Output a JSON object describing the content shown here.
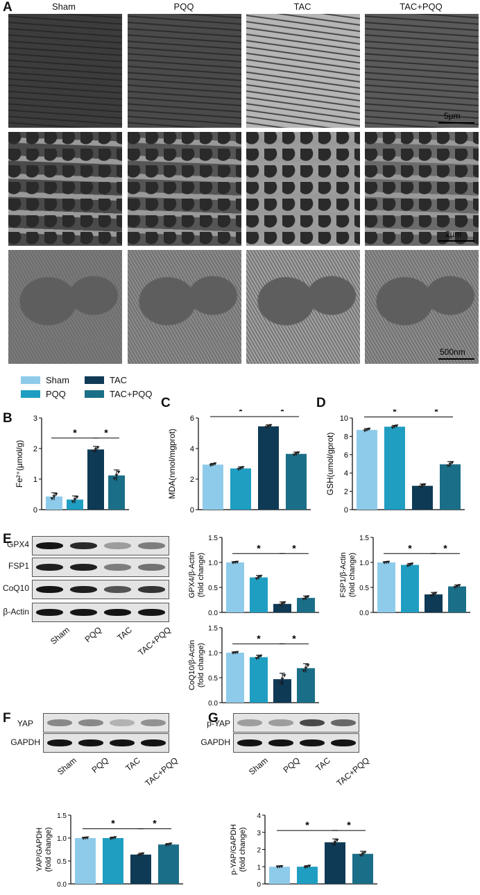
{
  "figure": {
    "panels": {
      "A": "A",
      "B": "B",
      "C": "C",
      "D": "D",
      "E": "E",
      "F": "F",
      "G": "G"
    },
    "em": {
      "columns": [
        "Sham",
        "PQQ",
        "TAC",
        "TAC+PQQ"
      ],
      "scalebars": [
        "5μm",
        "2μm",
        "500nm"
      ]
    },
    "legend": [
      {
        "label": "Sham",
        "color": "#8ECBEA"
      },
      {
        "label": "TAC",
        "color": "#0E3A55"
      },
      {
        "label": "PQQ",
        "color": "#1F9EC2"
      },
      {
        "label": "TAC+PQQ",
        "color": "#1B6E87"
      }
    ],
    "significance_mark": "*",
    "blots_E": {
      "rows": [
        "GPX4",
        "FSP1",
        "CoQ10",
        "β-Actin"
      ],
      "lanes": [
        "Sham",
        "PQQ",
        "TAC",
        "TAC+PQQ"
      ]
    },
    "blots_F": {
      "rows": [
        "YAP",
        "GAPDH"
      ],
      "lanes": [
        "Sham",
        "PQQ",
        "TAC",
        "TAC+PQQ"
      ]
    },
    "blots_G": {
      "rows": [
        "p-YAP",
        "GAPDH"
      ],
      "lanes": [
        "Sham",
        "PQQ",
        "TAC",
        "TAC+PQQ"
      ]
    }
  },
  "chart_data": [
    {
      "id": "B",
      "type": "bar",
      "categories": [
        "Sham",
        "PQQ",
        "TAC",
        "TAC+PQQ"
      ],
      "values": [
        0.43,
        0.33,
        1.97,
        1.12
      ],
      "errors": [
        0.12,
        0.12,
        0.1,
        0.18
      ],
      "ylabel": "Fe²⁺(μmol/g)",
      "ylim": [
        0,
        3
      ],
      "yticks": [
        0,
        1,
        2,
        3
      ]
    },
    {
      "id": "C",
      "type": "bar",
      "categories": [
        "Sham",
        "PQQ",
        "TAC",
        "TAC+PQQ"
      ],
      "values": [
        2.95,
        2.7,
        5.45,
        3.65
      ],
      "errors": [
        0.08,
        0.1,
        0.1,
        0.12
      ],
      "ylabel": "MDA(nmol/mgprot)",
      "ylim": [
        0,
        6
      ],
      "yticks": [
        0,
        2,
        4,
        6
      ]
    },
    {
      "id": "D",
      "type": "bar",
      "categories": [
        "Sham",
        "PQQ",
        "TAC",
        "TAC+PQQ"
      ],
      "values": [
        8.7,
        9.05,
        2.6,
        4.95
      ],
      "errors": [
        0.15,
        0.15,
        0.2,
        0.3
      ],
      "ylabel": "GSH(umol/gprot)",
      "ylim": [
        0,
        10
      ],
      "yticks": [
        0,
        2,
        4,
        6,
        8,
        10
      ]
    },
    {
      "id": "E1",
      "type": "bar",
      "categories": [
        "Sham",
        "PQQ",
        "TAC",
        "TAC+PQQ"
      ],
      "values": [
        1.0,
        0.7,
        0.17,
        0.29
      ],
      "errors": [
        0.01,
        0.04,
        0.04,
        0.04
      ],
      "ylabel": "GPX4/β-Actin (fold change)",
      "ylim": [
        0,
        1.5
      ],
      "yticks": [
        0.0,
        0.5,
        1.0,
        1.5
      ]
    },
    {
      "id": "E2",
      "type": "bar",
      "categories": [
        "Sham",
        "PQQ",
        "TAC",
        "TAC+PQQ"
      ],
      "values": [
        1.0,
        0.95,
        0.36,
        0.52
      ],
      "errors": [
        0.01,
        0.03,
        0.04,
        0.03
      ],
      "ylabel": "FSP1/β-Actin (fold change)",
      "ylim": [
        0,
        1.5
      ],
      "yticks": [
        0.0,
        0.5,
        1.0,
        1.5
      ]
    },
    {
      "id": "E3",
      "type": "bar",
      "categories": [
        "Sham",
        "PQQ",
        "TAC",
        "TAC+PQQ"
      ],
      "values": [
        1.0,
        0.91,
        0.47,
        0.69
      ],
      "errors": [
        0.01,
        0.04,
        0.12,
        0.09
      ],
      "ylabel": "CoQ10/β-Actin (fold change)",
      "ylim": [
        0,
        1.5
      ],
      "yticks": [
        0.0,
        0.5,
        1.0,
        1.5
      ]
    },
    {
      "id": "F",
      "type": "bar",
      "categories": [
        "Sham",
        "PQQ",
        "TAC",
        "TAC+PQQ"
      ],
      "values": [
        1.0,
        1.0,
        0.64,
        0.86
      ],
      "errors": [
        0.01,
        0.02,
        0.03,
        0.02
      ],
      "ylabel": "YAP/GAPDH (fold change)",
      "ylim": [
        0,
        1.5
      ],
      "yticks": [
        0.0,
        0.5,
        1.0,
        1.5
      ]
    },
    {
      "id": "G",
      "type": "bar",
      "categories": [
        "Sham",
        "PQQ",
        "TAC",
        "TAC+PQQ"
      ],
      "values": [
        1.0,
        1.0,
        2.42,
        1.75
      ],
      "errors": [
        0.02,
        0.06,
        0.2,
        0.15
      ],
      "ylabel": "p-YAP/GAPDH (fold change)",
      "ylim": [
        0,
        4
      ],
      "yticks": [
        0,
        1,
        2,
        3,
        4
      ]
    }
  ]
}
